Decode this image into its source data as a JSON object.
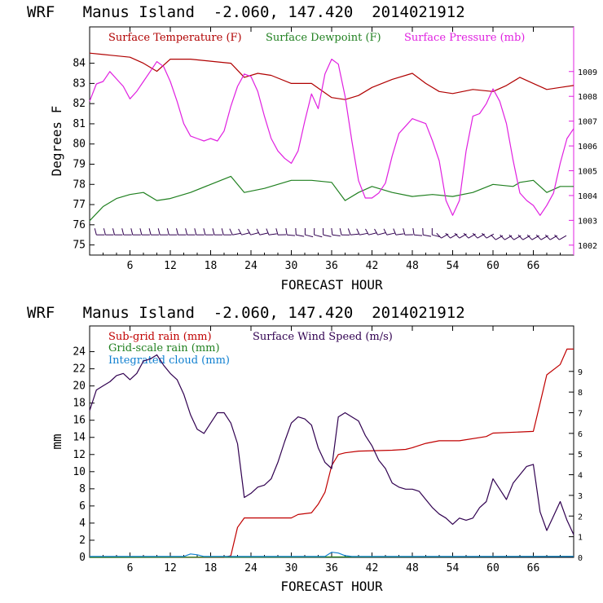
{
  "colors": {
    "temperature": "#b00000",
    "dewpoint": "#208020",
    "pressure": "#e020e0",
    "subgrid_rain": "#c00000",
    "grid_rain": "#208020",
    "cloud": "#1080d0",
    "wind_speed": "#300050",
    "barbs": "#300050"
  },
  "chart_data": [
    {
      "type": "line",
      "title": "WRF   Manus Island  -2.060, 147.420  2014021912",
      "xlabel": "FORECAST HOUR",
      "ylabel": "Degrees F",
      "xlim": [
        0,
        72
      ],
      "ylim": [
        74.5,
        85.8
      ],
      "xticks": [
        6,
        12,
        18,
        24,
        30,
        36,
        42,
        48,
        54,
        60,
        66
      ],
      "yticks": [
        75,
        76,
        77,
        78,
        79,
        80,
        81,
        82,
        83,
        84
      ],
      "y2lim": [
        1001.6,
        1010.8
      ],
      "y2ticks": [
        1002,
        1003,
        1004,
        1005,
        1006,
        1007,
        1008,
        1009
      ],
      "legend": [
        "Surface Temperature (F)",
        "Surface Dewpoint (F)",
        "Surface Pressure (mb)"
      ],
      "series": [
        {
          "name": "Surface Temperature (F)",
          "axis": "left",
          "x": [
            0,
            3,
            6,
            8,
            10,
            12,
            15,
            18,
            21,
            23,
            25,
            27,
            30,
            33,
            36,
            38,
            40,
            42,
            45,
            48,
            50,
            52,
            54,
            57,
            60,
            62,
            64,
            66,
            68,
            70,
            72
          ],
          "y": [
            84.5,
            84.4,
            84.3,
            84.0,
            83.6,
            84.2,
            84.2,
            84.1,
            84.0,
            83.3,
            83.5,
            83.4,
            83.0,
            83.0,
            82.3,
            82.2,
            82.4,
            82.8,
            83.2,
            83.5,
            83.0,
            82.6,
            82.5,
            82.7,
            82.6,
            82.9,
            83.3,
            83.0,
            82.7,
            82.8,
            82.9
          ]
        },
        {
          "name": "Surface Dewpoint (F)",
          "axis": "left",
          "x": [
            0,
            2,
            4,
            6,
            8,
            10,
            12,
            15,
            18,
            21,
            23,
            26,
            30,
            33,
            36,
            38,
            40,
            42,
            45,
            48,
            51,
            54,
            57,
            60,
            63,
            64,
            66,
            68,
            70,
            72
          ],
          "y": [
            76.2,
            76.9,
            77.3,
            77.5,
            77.6,
            77.2,
            77.3,
            77.6,
            78.0,
            78.4,
            77.6,
            77.8,
            78.2,
            78.2,
            78.1,
            77.2,
            77.6,
            77.9,
            77.6,
            77.4,
            77.5,
            77.4,
            77.6,
            78.0,
            77.9,
            78.1,
            78.2,
            77.6,
            77.9,
            77.9
          ]
        },
        {
          "name": "Surface Pressure (mb)",
          "axis": "right",
          "x": [
            0,
            1,
            2,
            3,
            4,
            5,
            6,
            7,
            8,
            9,
            10,
            11,
            12,
            13,
            14,
            15,
            16,
            17,
            18,
            19,
            20,
            21,
            22,
            23,
            24,
            25,
            26,
            27,
            28,
            29,
            30,
            31,
            32,
            33,
            34,
            35,
            36,
            37,
            38,
            39,
            40,
            41,
            42,
            43,
            44,
            45,
            46,
            47,
            48,
            49,
            50,
            51,
            52,
            53,
            54,
            55,
            56,
            57,
            58,
            59,
            60,
            61,
            62,
            63,
            64,
            65,
            66,
            67,
            68,
            69,
            70,
            71,
            72
          ],
          "y": [
            1007.8,
            1008.5,
            1008.6,
            1009.0,
            1008.7,
            1008.4,
            1007.9,
            1008.2,
            1008.6,
            1009.0,
            1009.4,
            1009.2,
            1008.6,
            1007.8,
            1006.9,
            1006.4,
            1006.3,
            1006.2,
            1006.3,
            1006.2,
            1006.6,
            1007.6,
            1008.4,
            1008.9,
            1008.8,
            1008.2,
            1007.2,
            1006.3,
            1005.8,
            1005.5,
            1005.3,
            1005.8,
            1007.0,
            1008.1,
            1007.5,
            1008.9,
            1009.5,
            1009.3,
            1008.0,
            1006.2,
            1004.6,
            1003.9,
            1003.9,
            1004.1,
            1004.5,
            1005.6,
            1006.5,
            1006.8,
            1007.1,
            1007.0,
            1006.9,
            1006.2,
            1005.4,
            1003.8,
            1003.2,
            1003.8,
            1005.8,
            1007.2,
            1007.3,
            1007.7,
            1008.3,
            1007.8,
            1006.9,
            1005.4,
            1004.1,
            1003.8,
            1003.6,
            1003.2,
            1003.6,
            1004.1,
            1005.3,
            1006.3,
            1006.7
          ]
        }
      ]
    },
    {
      "type": "line",
      "title": "WRF   Manus Island  -2.060, 147.420  2014021912",
      "xlabel": "FORECAST HOUR",
      "ylabel": "mm",
      "xlim": [
        0,
        72
      ],
      "ylim": [
        0,
        27
      ],
      "xticks": [
        6,
        12,
        18,
        24,
        30,
        36,
        42,
        48,
        54,
        60,
        66
      ],
      "yticks": [
        0,
        2,
        4,
        6,
        8,
        10,
        12,
        14,
        16,
        18,
        20,
        22,
        24
      ],
      "y2lim": [
        0,
        11.2
      ],
      "y2ticks": [
        0,
        1,
        2,
        3,
        4,
        5,
        6,
        7,
        8,
        9
      ],
      "legend": [
        "Sub-grid rain (mm)",
        "Grid-scale rain (mm)",
        "Integrated cloud (mm)",
        "Surface Wind Speed (m/s)"
      ],
      "series": [
        {
          "name": "Sub-grid rain (mm)",
          "axis": "left",
          "x": [
            0,
            20,
            21,
            22,
            23,
            30,
            31,
            33,
            34,
            35,
            36,
            37,
            38,
            40,
            45,
            47,
            48,
            50,
            52,
            55,
            59,
            60,
            66,
            67,
            68,
            70,
            71,
            72
          ],
          "y": [
            0,
            0,
            0.2,
            3.5,
            4.6,
            4.6,
            5.0,
            5.2,
            6.2,
            7.6,
            10.7,
            12.0,
            12.2,
            12.4,
            12.5,
            12.6,
            12.8,
            13.3,
            13.6,
            13.6,
            14.1,
            14.5,
            14.7,
            18.0,
            21.3,
            22.5,
            24.3,
            24.3
          ]
        },
        {
          "name": "Grid-scale rain (mm)",
          "axis": "left",
          "x": [
            0,
            72
          ],
          "y": [
            0,
            0.1
          ]
        },
        {
          "name": "Integrated cloud (mm)",
          "axis": "left",
          "x": [
            0,
            14,
            15,
            16,
            17,
            18,
            35,
            36,
            37,
            38,
            39,
            72
          ],
          "y": [
            0.1,
            0.1,
            0.4,
            0.3,
            0.1,
            0.1,
            0.1,
            0.6,
            0.5,
            0.2,
            0.1,
            0.1
          ]
        },
        {
          "name": "Surface Wind Speed (m/s)",
          "axis": "right",
          "x": [
            0,
            1,
            2,
            3,
            4,
            5,
            6,
            7,
            8,
            9,
            10,
            11,
            12,
            13,
            14,
            15,
            16,
            17,
            18,
            19,
            20,
            21,
            22,
            23,
            24,
            25,
            26,
            27,
            28,
            29,
            30,
            31,
            32,
            33,
            34,
            35,
            36,
            37,
            38,
            39,
            40,
            41,
            42,
            43,
            44,
            45,
            46,
            47,
            48,
            49,
            50,
            51,
            52,
            53,
            54,
            55,
            56,
            57,
            58,
            59,
            60,
            61,
            62,
            63,
            64,
            65,
            66,
            67,
            68,
            69,
            70,
            71,
            72
          ],
          "y": [
            7.1,
            8.1,
            8.3,
            8.5,
            8.8,
            8.9,
            8.6,
            8.9,
            9.5,
            9.6,
            9.8,
            9.3,
            8.9,
            8.6,
            7.9,
            6.9,
            6.2,
            6.0,
            6.5,
            7.0,
            7.0,
            6.5,
            5.5,
            2.9,
            3.1,
            3.4,
            3.5,
            3.8,
            4.6,
            5.6,
            6.5,
            6.8,
            6.7,
            6.4,
            5.3,
            4.6,
            4.3,
            6.8,
            7.0,
            6.8,
            6.6,
            5.9,
            5.4,
            4.7,
            4.3,
            3.6,
            3.4,
            3.3,
            3.3,
            3.2,
            2.8,
            2.4,
            2.1,
            1.9,
            1.6,
            1.9,
            1.8,
            1.9,
            2.4,
            2.7,
            3.8,
            3.3,
            2.8,
            3.6,
            4.0,
            4.4,
            4.5,
            2.2,
            1.3,
            2.0,
            2.7,
            1.8,
            1.1
          ]
        }
      ]
    }
  ]
}
